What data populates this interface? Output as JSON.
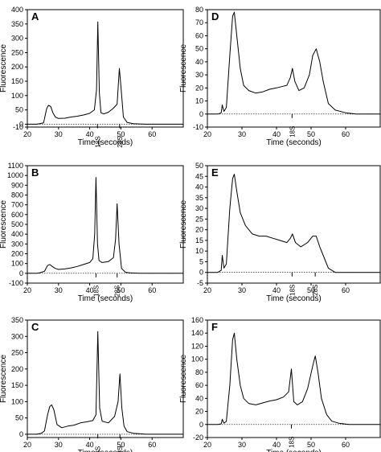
{
  "chart_data": [
    {
      "panel": "A",
      "type": "line",
      "xlabel": "Time (seconds)",
      "ylabel": "Fluorescence",
      "xlim": [
        20,
        70
      ],
      "ylim": [
        -10,
        400
      ],
      "xticks": [
        20,
        30,
        40,
        50,
        60
      ],
      "yticks": [
        -10,
        0,
        50,
        100,
        150,
        200,
        250,
        300,
        350,
        400
      ],
      "peak_labels": [
        {
          "text": "18S",
          "x": 42.5
        },
        {
          "text": "28S",
          "x": 49.6
        }
      ],
      "series": [
        {
          "x": [
            20,
            23,
            24,
            25.2,
            26.2,
            26.8,
            27.5,
            28.2,
            29,
            30,
            32,
            34,
            36,
            38,
            40,
            41.5,
            42.2,
            42.6,
            43.1,
            43.6,
            44.5,
            46,
            47.5,
            48.8,
            49.5,
            50.1,
            50.8,
            52,
            54,
            56,
            58,
            60,
            62,
            64,
            66,
            68,
            70
          ],
          "y": [
            0,
            0,
            2,
            5,
            55,
            66,
            62,
            40,
            25,
            20,
            21,
            25,
            28,
            32,
            38,
            50,
            120,
            357,
            110,
            40,
            36,
            42,
            55,
            70,
            195,
            120,
            25,
            6,
            2,
            1,
            0,
            0,
            0,
            0,
            0,
            0,
            0
          ]
        }
      ]
    },
    {
      "panel": "B",
      "type": "line",
      "xlabel": "Time (seconds)",
      "ylabel": "Fluorescence",
      "xlim": [
        20,
        70
      ],
      "ylim": [
        -100,
        1100
      ],
      "xticks": [
        20,
        30,
        40,
        50,
        60
      ],
      "yticks": [
        -100,
        0,
        100,
        200,
        300,
        400,
        500,
        600,
        700,
        800,
        900,
        1000,
        1100
      ],
      "peak_labels": [
        {
          "text": "18S",
          "x": 42.0
        },
        {
          "text": "28S",
          "x": 48.8
        }
      ],
      "series": [
        {
          "x": [
            20,
            23,
            24,
            25.5,
            26.5,
            27.2,
            28,
            29,
            30,
            32,
            34,
            36,
            38,
            40,
            41,
            41.6,
            42.0,
            42.5,
            43,
            44,
            46,
            47.6,
            48.3,
            48.8,
            49.4,
            50.2,
            51.5,
            53,
            56,
            60,
            64,
            70
          ],
          "y": [
            0,
            0,
            5,
            20,
            80,
            90,
            70,
            50,
            40,
            45,
            55,
            70,
            90,
            110,
            150,
            400,
            980,
            300,
            130,
            110,
            120,
            160,
            350,
            710,
            300,
            50,
            10,
            5,
            0,
            0,
            0,
            0
          ]
        }
      ]
    },
    {
      "panel": "C",
      "type": "line",
      "xlabel": "Time (seconds)",
      "ylabel": "Fluorescence",
      "xlim": [
        20,
        70
      ],
      "ylim": [
        -10,
        350
      ],
      "xticks": [
        20,
        30,
        40,
        50,
        60
      ],
      "yticks": [
        0,
        50,
        100,
        150,
        200,
        250,
        300,
        350
      ],
      "peak_labels": [
        {
          "text": "18S",
          "x": 42.6
        },
        {
          "text": "28S",
          "x": 49.7
        }
      ],
      "series": [
        {
          "x": [
            20,
            23,
            24.5,
            25.5,
            26.5,
            27.2,
            27.8,
            28.5,
            29.5,
            31,
            33,
            35,
            37,
            39,
            41,
            42,
            42.6,
            43.2,
            44,
            46,
            48,
            49.1,
            49.7,
            50.3,
            51,
            52,
            54,
            58,
            62,
            70
          ],
          "y": [
            0,
            0,
            3,
            10,
            60,
            85,
            90,
            75,
            30,
            20,
            25,
            28,
            35,
            38,
            42,
            60,
            315,
            80,
            40,
            35,
            55,
            100,
            185,
            80,
            25,
            8,
            3,
            0,
            0,
            0
          ]
        }
      ]
    },
    {
      "panel": "D",
      "type": "line",
      "xlabel": "Time (seconds)",
      "ylabel": "Fluorescence",
      "xlim": [
        20,
        70
      ],
      "ylim": [
        -10,
        80
      ],
      "xticks": [
        20,
        30,
        40,
        50,
        60
      ],
      "yticks": [
        -10,
        0,
        10,
        20,
        30,
        40,
        50,
        60,
        70,
        80
      ],
      "peak_labels": [
        {
          "text": "18S",
          "x": 44.5
        }
      ],
      "series": [
        {
          "x": [
            20,
            23,
            24,
            24.3,
            24.8,
            25.5,
            26.5,
            27.3,
            27.8,
            28.5,
            29.5,
            30.5,
            32,
            34,
            36,
            38,
            40,
            41.5,
            43,
            44,
            44.6,
            45.3,
            46.5,
            48,
            49.5,
            50.5,
            51.5,
            52.5,
            53.5,
            55,
            57,
            60,
            63,
            66,
            70
          ],
          "y": [
            0,
            0,
            1,
            7,
            2,
            5,
            45,
            75,
            78,
            60,
            35,
            22,
            18,
            16,
            17,
            19,
            20,
            21,
            22,
            28,
            35,
            25,
            18,
            20,
            30,
            45,
            50,
            40,
            25,
            8,
            3,
            1,
            0,
            0,
            0
          ]
        }
      ]
    },
    {
      "panel": "E",
      "type": "line",
      "xlabel": "Time (seconds)",
      "ylabel": "Fluorescence",
      "xlim": [
        20,
        70
      ],
      "ylim": [
        -5,
        50
      ],
      "xticks": [
        20,
        30,
        40,
        50,
        60
      ],
      "yticks": [
        -5,
        0,
        5,
        10,
        15,
        20,
        25,
        30,
        35,
        40,
        45,
        50
      ],
      "peak_labels": [
        {
          "text": "18S",
          "x": 44.5
        },
        {
          "text": "28S",
          "x": 51.2
        }
      ],
      "series": [
        {
          "x": [
            20,
            23,
            24,
            24.3,
            24.8,
            25.5,
            26.5,
            27.3,
            27.8,
            28.5,
            29.5,
            31,
            33,
            35,
            37,
            39,
            41,
            43,
            44,
            44.6,
            45.5,
            47,
            49,
            50.5,
            51.5,
            52.5,
            53.5,
            55,
            57,
            60,
            65,
            70
          ],
          "y": [
            0,
            0,
            1,
            8,
            2,
            4,
            30,
            44,
            46,
            38,
            28,
            22,
            18,
            17,
            17,
            16,
            15,
            14,
            16,
            18,
            14,
            12,
            14,
            17,
            17,
            12,
            8,
            2,
            0,
            0,
            0,
            0
          ]
        }
      ]
    },
    {
      "panel": "F",
      "type": "line",
      "xlabel": "Time (seconds)",
      "ylabel": "Fluorescence",
      "xlim": [
        20,
        70
      ],
      "ylim": [
        -20,
        160
      ],
      "xticks": [
        20,
        30,
        40,
        50,
        60
      ],
      "yticks": [
        -20,
        0,
        20,
        40,
        60,
        80,
        100,
        120,
        140,
        160
      ],
      "peak_labels": [
        {
          "text": "18S",
          "x": 44.3
        }
      ],
      "series": [
        {
          "x": [
            20,
            23,
            24,
            24.3,
            24.8,
            25.5,
            26.5,
            27.3,
            27.8,
            28.5,
            29.5,
            30.5,
            32,
            34,
            36,
            38,
            40,
            42,
            43.5,
            44.3,
            45,
            46,
            47.5,
            49,
            50.5,
            51.2,
            52,
            53,
            54.5,
            56,
            58,
            61,
            64,
            70
          ],
          "y": [
            0,
            0,
            1,
            8,
            2,
            5,
            60,
            130,
            140,
            100,
            60,
            40,
            32,
            30,
            33,
            36,
            38,
            42,
            50,
            85,
            35,
            30,
            35,
            55,
            90,
            105,
            80,
            40,
            15,
            5,
            2,
            0,
            0,
            0
          ]
        }
      ]
    }
  ]
}
